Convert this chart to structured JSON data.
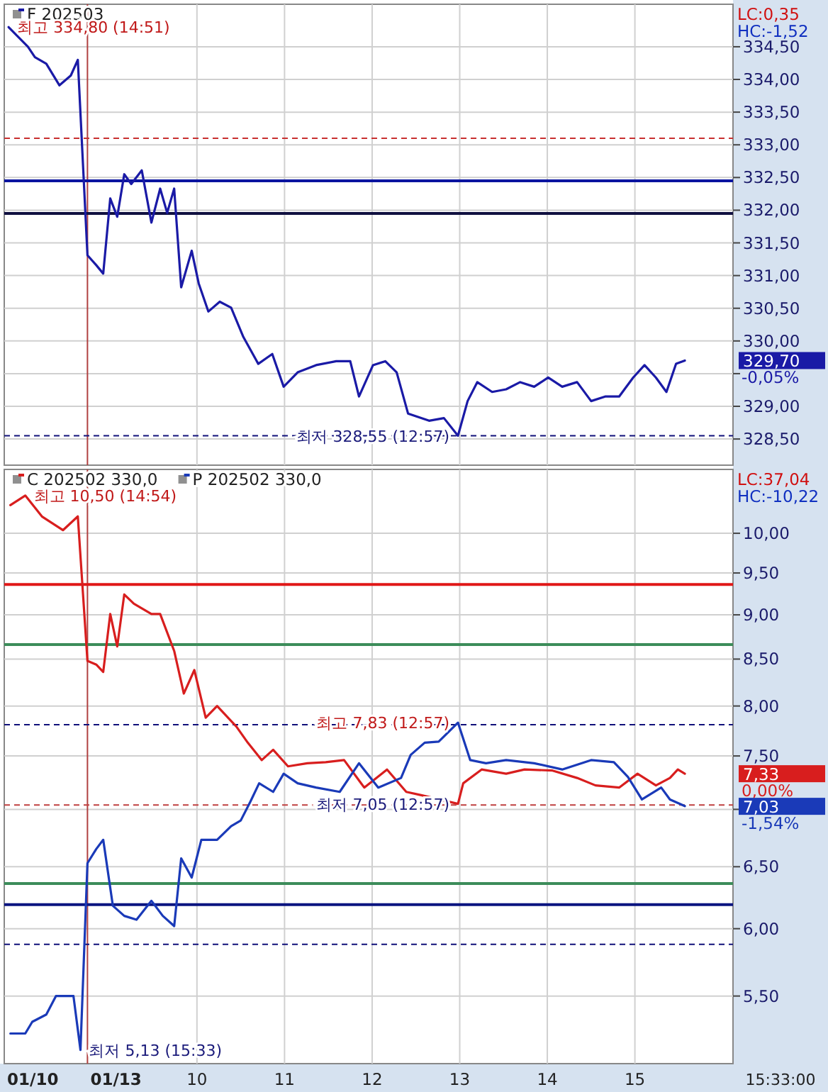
{
  "chart_data": [
    {
      "type": "line",
      "legend": "top left",
      "grid": true,
      "tick_labels": "y",
      "series": [
        {
          "name": "F 202503",
          "color": "#1a1aa6",
          "x": [
            7.85,
            8.07,
            8.15,
            8.28,
            8.43,
            8.56,
            8.64,
            8.75,
            8.85,
            8.93,
            9.01,
            9.09,
            9.17,
            9.25,
            9.37,
            9.48,
            9.58,
            9.66,
            9.74,
            9.82,
            9.94,
            10.02,
            10.13,
            10.26,
            10.39,
            10.53,
            10.7,
            10.86,
            10.99,
            11.15,
            11.36,
            11.59,
            11.75,
            11.85,
            12.01,
            12.15,
            12.28,
            12.41,
            12.65,
            12.82,
            12.98,
            13.09,
            13.2,
            13.37,
            13.53,
            13.69,
            13.85,
            14.01,
            14.17,
            14.34,
            14.5,
            14.66,
            14.82,
            14.98,
            15.11,
            15.24,
            15.36,
            15.47,
            15.57
          ],
          "values": [
            334.8,
            334.5,
            334.34,
            334.24,
            333.91,
            334.06,
            334.3,
            331.31,
            331.16,
            331.03,
            332.18,
            331.9,
            332.55,
            332.4,
            332.61,
            331.81,
            332.33,
            331.96,
            332.33,
            330.82,
            331.38,
            330.88,
            330.45,
            330.6,
            330.51,
            330.06,
            329.65,
            329.8,
            329.3,
            329.52,
            329.63,
            329.69,
            329.69,
            329.15,
            329.63,
            329.69,
            329.52,
            328.89,
            328.78,
            328.82,
            328.55,
            329.08,
            329.37,
            329.22,
            329.26,
            329.37,
            329.3,
            329.44,
            329.3,
            329.37,
            329.08,
            329.15,
            329.15,
            329.44,
            329.63,
            329.44,
            329.22,
            329.65,
            329.7
          ]
        }
      ],
      "xlim": [
        7.8,
        16.12
      ],
      "ylim": [
        328.1,
        335.15
      ],
      "xticks": [
        {
          "value": 10,
          "label": null
        },
        {
          "value": 11,
          "label": null
        },
        {
          "value": 12,
          "label": null
        },
        {
          "value": 13,
          "label": null
        },
        {
          "value": 14,
          "label": null
        },
        {
          "value": 15,
          "label": null
        }
      ],
      "yticks": [
        {
          "value": 328.5,
          "label": "328,50"
        },
        {
          "value": 329,
          "label": "329,00"
        },
        {
          "value": 329.5,
          "label": null
        },
        {
          "value": 330,
          "label": "330,00"
        },
        {
          "value": 330.5,
          "label": "330,50"
        },
        {
          "value": 331,
          "label": "331,00"
        },
        {
          "value": 331.5,
          "label": "331,50"
        },
        {
          "value": 332,
          "label": "332,00"
        },
        {
          "value": 332.5,
          "label": "332,50"
        },
        {
          "value": 333,
          "label": "333,00"
        },
        {
          "value": 333.5,
          "label": "333,50"
        },
        {
          "value": 334,
          "label": "334,00"
        },
        {
          "value": 334.5,
          "label": "334,50"
        }
      ],
      "ref_lines": [
        {
          "axis": "x",
          "value": 8.75,
          "color": "#b04040",
          "line_style": "solid"
        },
        {
          "axis": "y",
          "value": 333.1,
          "color": "#c83030",
          "line_style": "dashed"
        },
        {
          "axis": "y",
          "value": 332.45,
          "color": "#0a14a0",
          "line_style": "solid"
        },
        {
          "axis": "y",
          "value": 331.95,
          "color": "#101040",
          "line_style": "solid"
        },
        {
          "axis": "y",
          "value": 328.55,
          "color": "#10107a",
          "line_style": "dashed"
        }
      ],
      "annotations": [
        "LC:0,35",
        "HC:-1,52",
        {
          "text": "최고 334,80 (14:51)",
          "x": 7.85,
          "y": 334.8
        },
        {
          "text": "최저 328,55 (12:57)",
          "x": 12.98,
          "y": 328.55
        },
        "329,70",
        "-0,05%"
      ]
    },
    {
      "type": "line",
      "legend": "top left",
      "grid": true,
      "log": "y",
      "xlabel": "15:33:00",
      "series": [
        {
          "name": "C 202502 330,0",
          "color": "#d81e1e",
          "x": [
            7.87,
            8.04,
            8.23,
            8.47,
            8.64,
            8.75,
            8.85,
            8.93,
            9.01,
            9.09,
            9.17,
            9.28,
            9.48,
            9.58,
            9.74,
            9.85,
            9.97,
            10.1,
            10.23,
            10.45,
            10.58,
            10.74,
            10.87,
            11.04,
            11.26,
            11.47,
            11.68,
            11.91,
            12.17,
            12.39,
            12.56,
            12.98,
            13.04,
            13.25,
            13.53,
            13.74,
            14.06,
            14.34,
            14.55,
            14.82,
            15.03,
            15.24,
            15.4,
            15.49,
            15.57
          ],
          "values": [
            10.37,
            10.5,
            10.22,
            10.04,
            10.22,
            8.48,
            8.44,
            8.36,
            9.01,
            8.64,
            9.24,
            9.13,
            9.01,
            9.01,
            8.59,
            8.13,
            8.38,
            7.88,
            8.0,
            7.79,
            7.63,
            7.46,
            7.56,
            7.4,
            7.43,
            7.44,
            7.46,
            7.2,
            7.37,
            7.16,
            7.13,
            7.05,
            7.24,
            7.37,
            7.33,
            7.37,
            7.36,
            7.29,
            7.22,
            7.2,
            7.33,
            7.22,
            7.29,
            7.37,
            7.33
          ]
        },
        {
          "name": "P 202502 330,0",
          "color": "#1a3ab8",
          "x": [
            7.87,
            8.04,
            8.12,
            8.28,
            8.39,
            8.59,
            8.67,
            8.75,
            8.85,
            8.93,
            9.04,
            9.17,
            9.31,
            9.48,
            9.61,
            9.74,
            9.82,
            9.94,
            10.05,
            10.23,
            10.39,
            10.5,
            10.61,
            10.71,
            10.87,
            10.99,
            11.15,
            11.36,
            11.63,
            11.85,
            12.07,
            12.33,
            12.44,
            12.6,
            12.76,
            12.98,
            13.12,
            13.3,
            13.53,
            13.85,
            14.17,
            14.5,
            14.76,
            14.92,
            15.08,
            15.3,
            15.4,
            15.57
          ],
          "values": [
            5.24,
            5.24,
            5.32,
            5.37,
            5.5,
            5.5,
            5.13,
            6.53,
            6.65,
            6.73,
            6.18,
            6.1,
            6.07,
            6.22,
            6.1,
            6.02,
            6.57,
            6.41,
            6.73,
            6.73,
            6.85,
            6.9,
            7.07,
            7.24,
            7.16,
            7.33,
            7.24,
            7.2,
            7.16,
            7.43,
            7.2,
            7.29,
            7.51,
            7.63,
            7.64,
            7.83,
            7.46,
            7.43,
            7.46,
            7.43,
            7.37,
            7.46,
            7.44,
            7.3,
            7.09,
            7.2,
            7.09,
            7.03
          ]
        }
      ],
      "xlim": [
        7.8,
        16.12
      ],
      "ylim": [
        5.04,
        10.86
      ],
      "xticks": [
        {
          "value": 10,
          "label": "10"
        },
        {
          "value": 11,
          "label": "11"
        },
        {
          "value": 12,
          "label": "12"
        },
        {
          "value": 13,
          "label": "13"
        },
        {
          "value": 14,
          "label": "14"
        },
        {
          "value": 15,
          "label": "15"
        }
      ],
      "yticks": [
        {
          "value": 5.5,
          "label": "5,50"
        },
        {
          "value": 6,
          "label": "6,00"
        },
        {
          "value": 6.5,
          "label": "6,50"
        },
        {
          "value": 7,
          "label": null
        },
        {
          "value": 7.5,
          "label": "7,50"
        },
        {
          "value": 8,
          "label": "8,00"
        },
        {
          "value": 8.5,
          "label": "8,50"
        },
        {
          "value": 9,
          "label": "9,00"
        },
        {
          "value": 9.5,
          "label": "9,50"
        },
        {
          "value": 10,
          "label": "10,00"
        }
      ],
      "ref_lines": [
        {
          "axis": "x",
          "value": 8.75,
          "color": "#b04040",
          "line_style": "solid"
        },
        {
          "axis": "y",
          "value": 9.36,
          "color": "#e01818",
          "line_style": "solid"
        },
        {
          "axis": "y",
          "value": 8.66,
          "color": "#3c8c5a",
          "line_style": "solid"
        },
        {
          "axis": "y",
          "value": 7.81,
          "color": "#10107a",
          "line_style": "dashed"
        },
        {
          "axis": "y",
          "value": 7.04,
          "color": "#c04040",
          "line_style": "dashed"
        },
        {
          "axis": "y",
          "value": 6.36,
          "color": "#3c8c5a",
          "line_style": "solid"
        },
        {
          "axis": "y",
          "value": 6.19,
          "color": "#0a1480",
          "line_style": "solid"
        },
        {
          "axis": "y",
          "value": 5.88,
          "color": "#10107a",
          "line_style": "dashed"
        }
      ],
      "annotations": [
        "01/10",
        "01/13",
        "LC:37,04",
        "HC:-10,22",
        {
          "text": "최고 10,50 (14:54)",
          "x": 8.04,
          "y": 10.5
        },
        {
          "text": "최고 7,83 (12:57)",
          "x": 12.98,
          "y": 7.83
        },
        {
          "text": "최저 7,05 (12:57)",
          "x": 12.98,
          "y": 7.05
        },
        {
          "text": "최저 5,13 (15:33)",
          "x": 8.67,
          "y": 5.13
        },
        "7,33",
        "0,00%",
        "7,03",
        "-1,54%"
      ]
    }
  ]
}
